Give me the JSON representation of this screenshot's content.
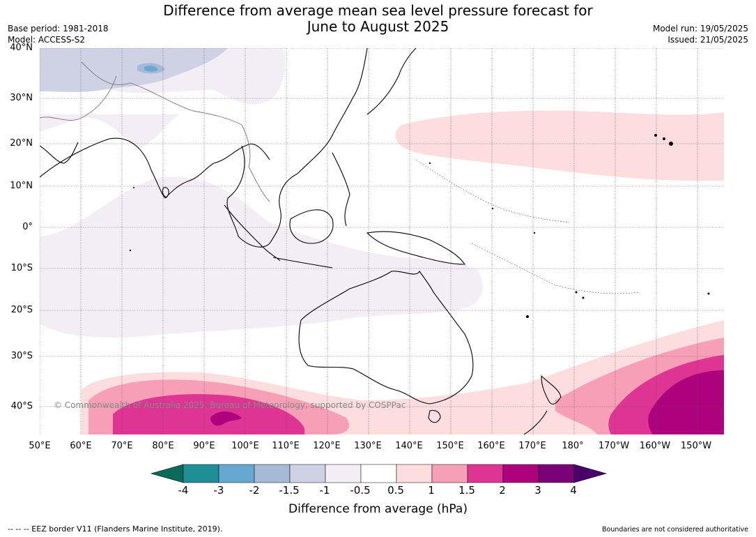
{
  "title_line1": "Difference from average mean sea level pressure forecast for",
  "title_line2": "June to August 2025",
  "meta_left": [
    "Base period: 1981-2018",
    "Model: ACCESS-S2"
  ],
  "meta_right": [
    "Model run: 19/05/2025",
    "Issued: 21/05/2025"
  ],
  "lat_labels": [
    "40°N",
    "30°N",
    "20°N",
    "10°N",
    "0°",
    "10°S",
    "20°S",
    "30°S",
    "40°S"
  ],
  "lon_labels": [
    "50°E",
    "60°E",
    "70°E",
    "80°E",
    "90°E",
    "100°E",
    "110°E",
    "120°E",
    "130°E",
    "140°E",
    "150°E",
    "160°E",
    "170°E",
    "180°",
    "170°W",
    "160°W",
    "150°W"
  ],
  "copyright": "© Commonwealth of Australia 2025, Bureau of Meteorology, supported by COSPPac",
  "colorbar": {
    "ticks": [
      "-4",
      "-3",
      "-2",
      "-1.5",
      "-1",
      "-0.5",
      "0.5",
      "1",
      "1.5",
      "2",
      "3",
      "4"
    ],
    "colors": [
      "#0a6b5a",
      "#1f8e97",
      "#67a8d1",
      "#a6b9d6",
      "#cfd1e4",
      "#f3eef5",
      "#ffffff",
      "#fddddd",
      "#f89fb8",
      "#de3494",
      "#ad017d",
      "#7a0177",
      "#4a006a"
    ],
    "label": "Difference from average (hPa)"
  },
  "footer_left": "--  --  -- EEZ border V11 (Flanders Marine Institute, 2019).",
  "footer_right": "Boundaries are not considered authoritative"
}
